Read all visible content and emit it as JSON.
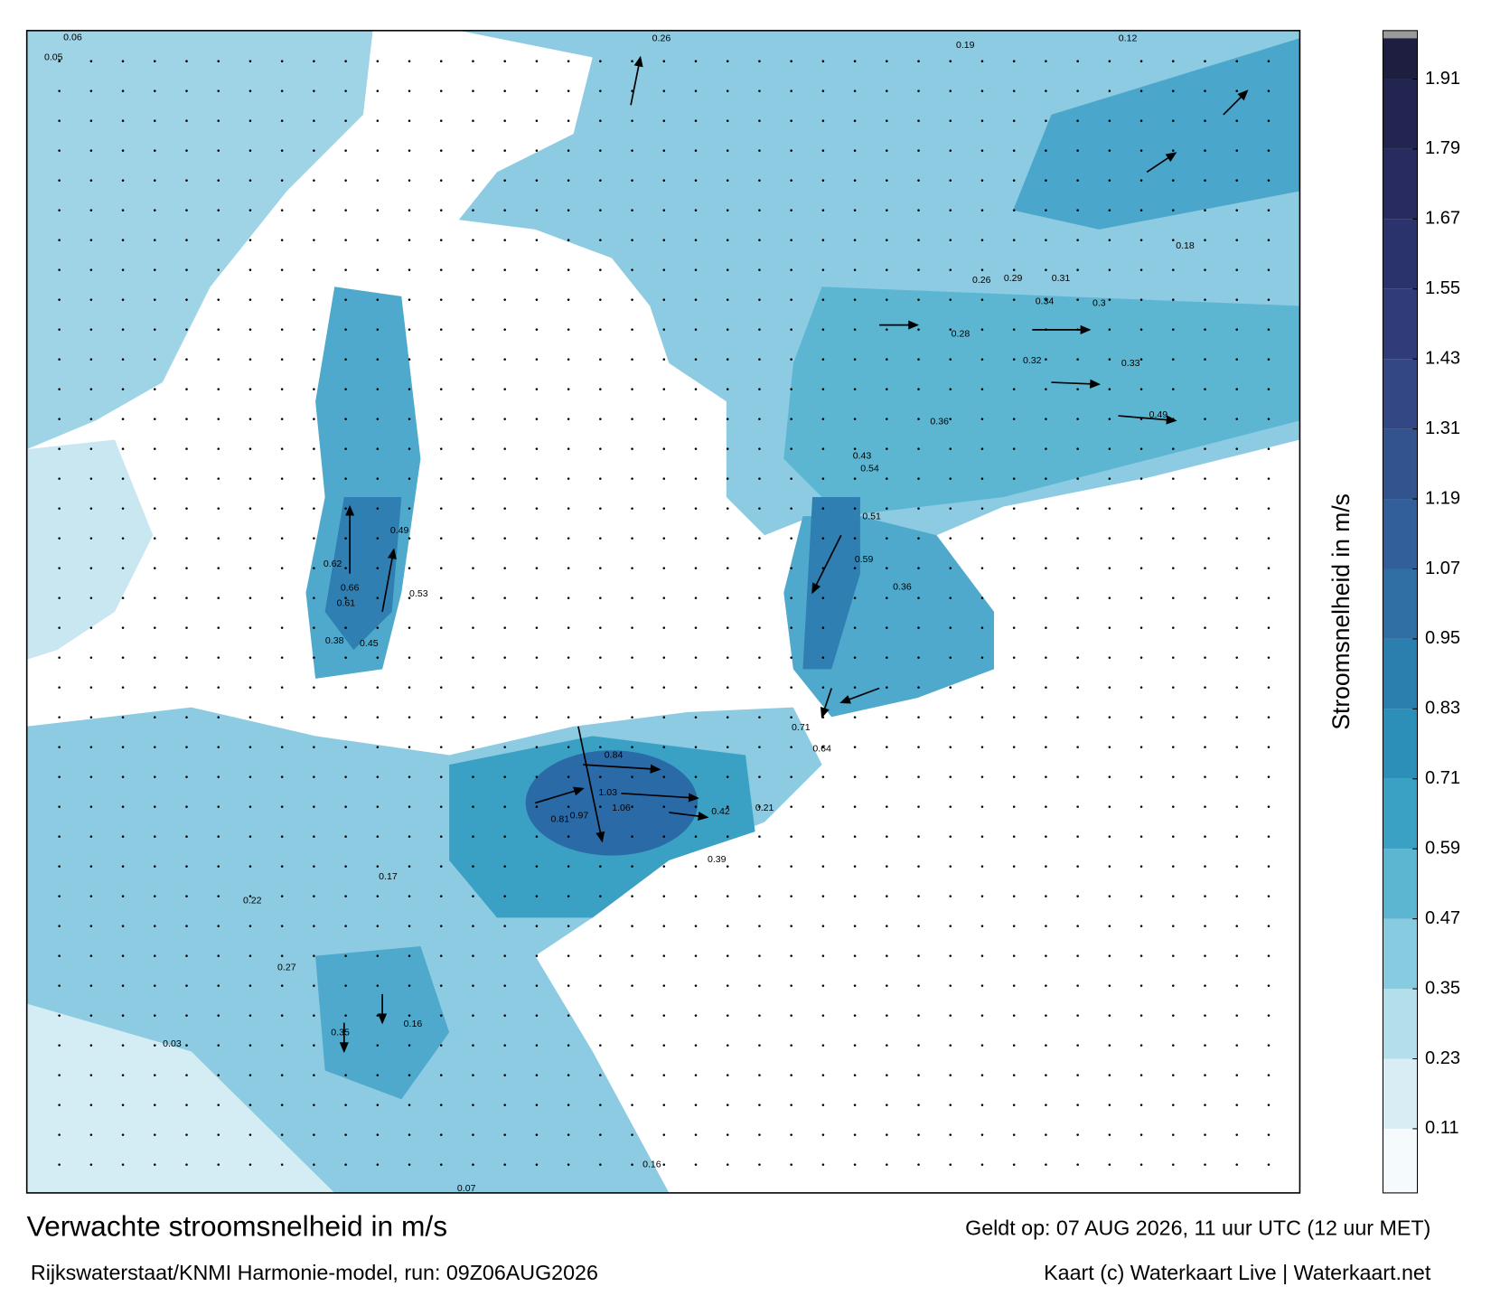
{
  "map": {
    "title": "Verwachte stroomsnelheid in m/s",
    "subtitle": "Rijkswaterstaat/KNMI Harmonie-model, run: 09Z06AUG2026",
    "valid_time": "Geldt op: 07 AUG 2026, 11 uur UTC (12 uur MET)",
    "credit": "Kaart (c) Waterkaart Live | Waterkaart.net",
    "colorbar": {
      "label": "Stroomsnelheid in m/s",
      "lim": [
        0,
        1.98
      ],
      "ticks": [
        0.11,
        0.23,
        0.35,
        0.47,
        0.59,
        0.71,
        0.83,
        0.95,
        1.07,
        1.19,
        1.31,
        1.43,
        1.55,
        1.67,
        1.79,
        1.91
      ],
      "colors": [
        "#f5fafc",
        "#d9eef4",
        "#b3dfeb",
        "#86cbe0",
        "#5cb6d2",
        "#3aa1c4",
        "#2b8fb8",
        "#2a7fae",
        "#2f6fa3",
        "#325f99",
        "#33538f",
        "#334785",
        "#303c7a",
        "#2b336d",
        "#272b5f",
        "#222550",
        "#1e1f40"
      ]
    },
    "speed_labels": [
      0.06,
      0.05,
      0.26,
      0.12,
      0.19,
      0.66,
      0.61,
      0.49,
      0.53,
      0.62,
      0.38,
      0.45,
      0.29,
      0.31,
      0.32,
      0.33,
      0.34,
      0.3,
      0.26,
      0.28,
      0.36,
      0.54,
      0.59,
      0.51,
      0.81,
      1.03,
      1.06,
      0.97,
      0.84,
      0.42,
      0.39,
      0.71,
      0.64,
      0.21,
      0.16,
      0.17,
      0.22,
      0.35,
      0.27,
      0.16,
      0.07,
      0.03,
      0.18,
      0.49,
      0.36,
      0.43
    ]
  }
}
